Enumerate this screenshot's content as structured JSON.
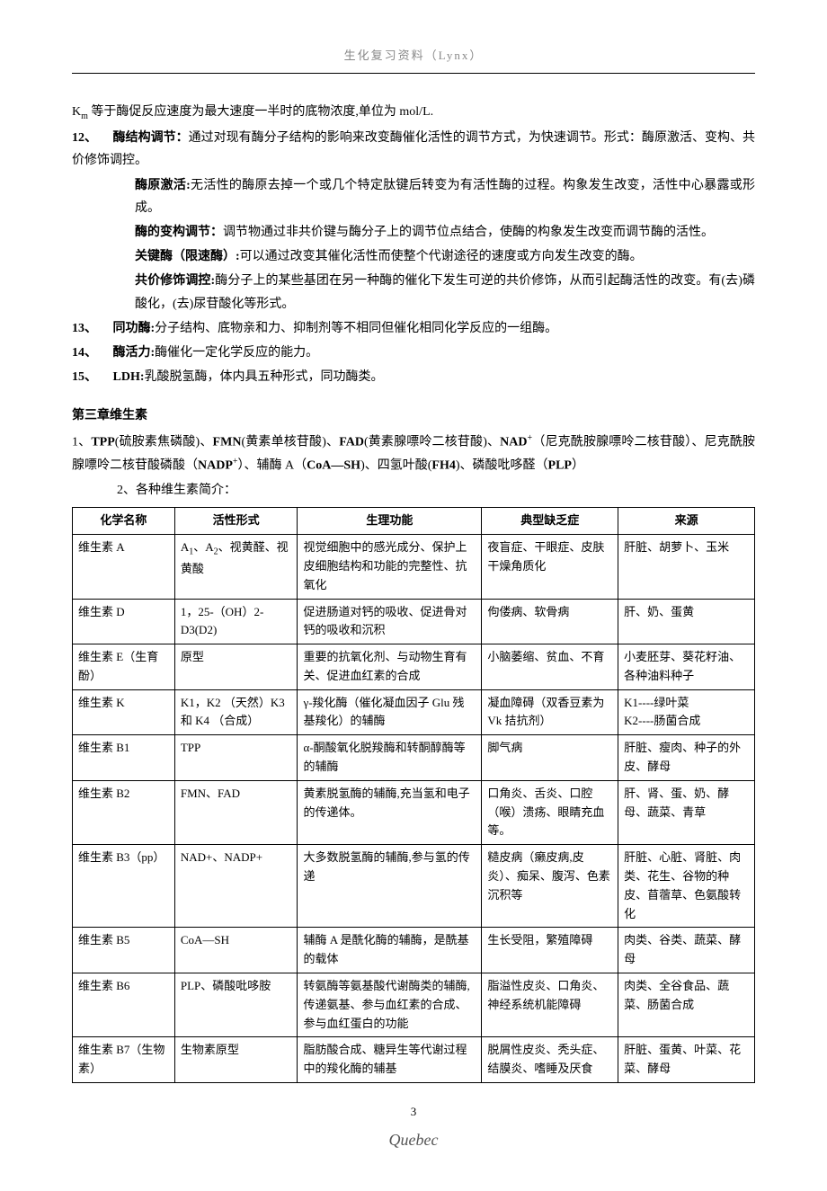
{
  "header": "生化复习资料（Lynx）",
  "intro_km": "K<sub>m</sub> 等于酶促反应速度为最大速度一半时的底物浓度,单位为 mol/L.",
  "item12": {
    "num": "12、",
    "title": "酶结构调节：",
    "text": "通过对现有酶分子结构的影响来改变酶催化活性的调节方式，为快速调节。形式：酶原激活、变构、共价修饰调控。",
    "sub1_title": "酶原激活:",
    "sub1_text": "无活性的酶原去掉一个或几个特定肽键后转变为有活性酶的过程。构象发生改变，活性中心暴露或形成。",
    "sub2_title": "酶的变构调节：",
    "sub2_text": "调节物通过非共价键与酶分子上的调节位点结合，使酶的构象发生改变而调节酶的活性。",
    "sub3_title": "关键酶（限速酶）:",
    "sub3_text": "可以通过改变其催化活性而使整个代谢途径的速度或方向发生改变的酶。",
    "sub4_title": "共价修饰调控:",
    "sub4_text": "酶分子上的某些基团在另一种酶的催化下发生可逆的共价修饰，从而引起酶活性的改变。有(去)磷酸化，(去)尿苷酸化等形式。"
  },
  "item13": {
    "num": "13、",
    "title": "同功酶:",
    "text": "分子结构、底物亲和力、抑制剂等不相同但催化相同化学反应的一组酶。"
  },
  "item14": {
    "num": "14、",
    "title": "酶活力:",
    "text": "酶催化一定化学反应的能力。"
  },
  "item15": {
    "num": "15、",
    "title": "LDH:",
    "text": "乳酸脱氢酶，体内具五种形式，同功酶类。"
  },
  "chapter3": {
    "title": "第三章维生素",
    "item1": "1、<b>TPP</b>(硫胺素焦磷酸)、<b>FMN</b>(黄素单核苷酸)、<b>FAD</b>(黄素腺嘌呤二核苷酸)、<b>NAD</b><sup>+</sup>（尼克酰胺腺嘌呤二核苷酸）、尼克酰胺腺嘌呤二核苷酸磷酸（<b>NADP</b><sup>+</sup>）、辅酶 A（<b>CoA—SH</b>)、四氢叶酸(<b>FH4</b>)、磷酸吡哆醛（<b>PLP</b>）",
    "item2": "2、各种维生素简介："
  },
  "table": {
    "headers": [
      "化学名称",
      "活性形式",
      "生理功能",
      "典型缺乏症",
      "来源"
    ],
    "rows": [
      [
        "维生素 A",
        "A<sub>1</sub>、A<sub>2</sub>、视黄醛、视黄酸",
        "视觉细胞中的感光成分、保护上皮细胞结构和功能的完整性、抗氧化",
        "夜盲症、干眼症、皮肤干燥角质化",
        "肝脏、胡萝卜、玉米"
      ],
      [
        "维生素 D",
        "1，25-（OH）2-D3(D2)",
        "促进肠道对钙的吸收、促进骨对钙的吸收和沉积",
        "佝偻病、软骨病",
        "肝、奶、蛋黄"
      ],
      [
        "维生素 E（生育酚）",
        "原型",
        "重要的抗氧化剂、与动物生育有关、促进血红素的合成",
        "小脑萎缩、贫血、不育",
        "小麦胚芽、葵花籽油、各种油料种子"
      ],
      [
        "维生素 K",
        "K1，K2 （天然）K3 和 K4 （合成）",
        "γ-羧化酶（催化凝血因子 Glu 残基羧化）的辅酶",
        "凝血障碍（双香豆素为 Vk 拮抗剂）",
        "K1----绿叶菜<br>K2----肠菌合成"
      ],
      [
        "维生素 B1",
        "TPP",
        "α-酮酸氧化脱羧酶和转酮醇酶等的辅酶",
        "脚气病",
        "肝脏、瘦肉、种子的外皮、酵母"
      ],
      [
        "维生素 B2",
        "FMN、FAD",
        "黄素脱氢酶的辅酶,充当氢和电子的传递体。",
        "口角炎、舌炎、口腔（喉）溃疡、眼睛充血等。",
        "肝、肾、蛋、奶、酵母、蔬菜、青草"
      ],
      [
        "维生素 B3（pp）",
        "NAD+、NADP+",
        "大多数脱氢酶的辅酶,参与氢的传递",
        "糙皮病（癞皮病,皮炎）、痴呆、腹泻、色素沉积等",
        "肝脏、心脏、肾脏、肉类、花生、谷物的种皮、苜蓿草、色氨酸转化"
      ],
      [
        "维生素 B5",
        "CoA—SH",
        "辅酶 A 是酰化酶的辅酶，是酰基的载体",
        "生长受阻，繁殖障碍",
        "肉类、谷类、蔬菜、酵母"
      ],
      [
        "维生素 B6",
        "PLP、磷酸吡哆胺",
        "转氨酶等氨基酸代谢酶类的辅酶,传递氨基、参与血红素的合成、参与血红蛋白的功能",
        "脂溢性皮炎、口角炎、神经系统机能障碍",
        "肉类、全谷食品、蔬菜、肠菌合成"
      ],
      [
        "维生素 B7（生物素）",
        "生物素原型",
        "脂肪酸合成、糖异生等代谢过程中的羧化酶的辅基",
        "脱屑性皮炎、秃头症、结膜炎、嗜睡及厌食",
        "肝脏、蛋黄、叶菜、花菜、酵母"
      ]
    ]
  },
  "footer": {
    "page": "3",
    "sig": "Quebec"
  }
}
